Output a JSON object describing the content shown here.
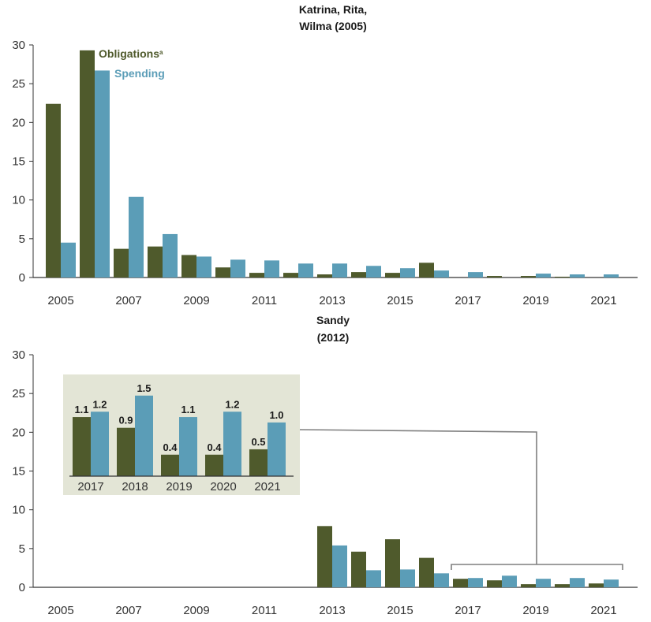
{
  "colors": {
    "obligations": "#4f5a2c",
    "spending": "#5b9db7",
    "inset_bg": "#e3e5d6",
    "axis": "#333333",
    "connector": "#7f7f7f"
  },
  "chart_data": [
    {
      "type": "bar",
      "title": "Katrina, Rita,\nWilma (2005)",
      "title_lines": [
        "Katrina, Rita,",
        "Wilma (2005)"
      ],
      "categories": [
        "2005",
        "2006",
        "2007",
        "2008",
        "2009",
        "2010",
        "2011",
        "2012",
        "2013",
        "2014",
        "2015",
        "2016",
        "2017",
        "2018",
        "2019",
        "2020",
        "2021"
      ],
      "x_tick_labels": [
        "2005",
        "2007",
        "2009",
        "2011",
        "2013",
        "2015",
        "2017",
        "2019",
        "2021"
      ],
      "ylim": [
        0,
        30
      ],
      "y_ticks": [
        "0",
        "5",
        "10",
        "15",
        "20",
        "25",
        "30"
      ],
      "legend": {
        "obligations": "Obligations",
        "footnote_mark": "a",
        "spending": "Spending"
      },
      "series": [
        {
          "name": "Obligations",
          "values": [
            22.4,
            29.3,
            3.7,
            4.0,
            2.9,
            1.3,
            0.6,
            0.6,
            0.4,
            0.7,
            0.6,
            1.9,
            0.0,
            0.2,
            0.2,
            0.1,
            0.0
          ]
        },
        {
          "name": "Spending",
          "values": [
            4.5,
            26.7,
            10.4,
            5.6,
            2.7,
            2.3,
            2.2,
            1.8,
            1.8,
            1.5,
            1.2,
            0.9,
            0.7,
            0.0,
            0.5,
            0.4,
            0.4
          ]
        }
      ]
    },
    {
      "type": "bar",
      "title": "Sandy\n(2012)",
      "title_lines": [
        "Sandy",
        "(2012)"
      ],
      "categories": [
        "2005",
        "2006",
        "2007",
        "2008",
        "2009",
        "2010",
        "2011",
        "2012",
        "2013",
        "2014",
        "2015",
        "2016",
        "2017",
        "2018",
        "2019",
        "2020",
        "2021"
      ],
      "x_tick_labels": [
        "2005",
        "2007",
        "2009",
        "2011",
        "2013",
        "2015",
        "2017",
        "2019",
        "2021"
      ],
      "ylim": [
        0,
        30
      ],
      "y_ticks": [
        "0",
        "5",
        "10",
        "15",
        "20",
        "25",
        "30"
      ],
      "series": [
        {
          "name": "Obligations",
          "values": [
            0,
            0,
            0,
            0,
            0,
            0,
            0,
            0,
            7.9,
            4.6,
            6.2,
            3.8,
            1.1,
            0.9,
            0.4,
            0.4,
            0.5
          ]
        },
        {
          "name": "Spending",
          "values": [
            0,
            0,
            0,
            0,
            0,
            0,
            0,
            0,
            5.4,
            2.2,
            2.3,
            1.8,
            1.2,
            1.5,
            1.1,
            1.2,
            1.0
          ]
        }
      ],
      "inset": {
        "categories": [
          "2017",
          "2018",
          "2019",
          "2020",
          "2021"
        ],
        "obligations": [
          1.1,
          0.9,
          0.4,
          0.4,
          0.5
        ],
        "spending": [
          1.2,
          1.5,
          1.1,
          1.2,
          1.0
        ],
        "obligation_labels": [
          "1.1",
          "0.9",
          "0.4",
          "0.4",
          "0.5"
        ],
        "spending_labels": [
          "1.2",
          "1.5",
          "1.1",
          "1.2",
          "1.0"
        ],
        "ylim": [
          0,
          1.6
        ]
      }
    }
  ]
}
